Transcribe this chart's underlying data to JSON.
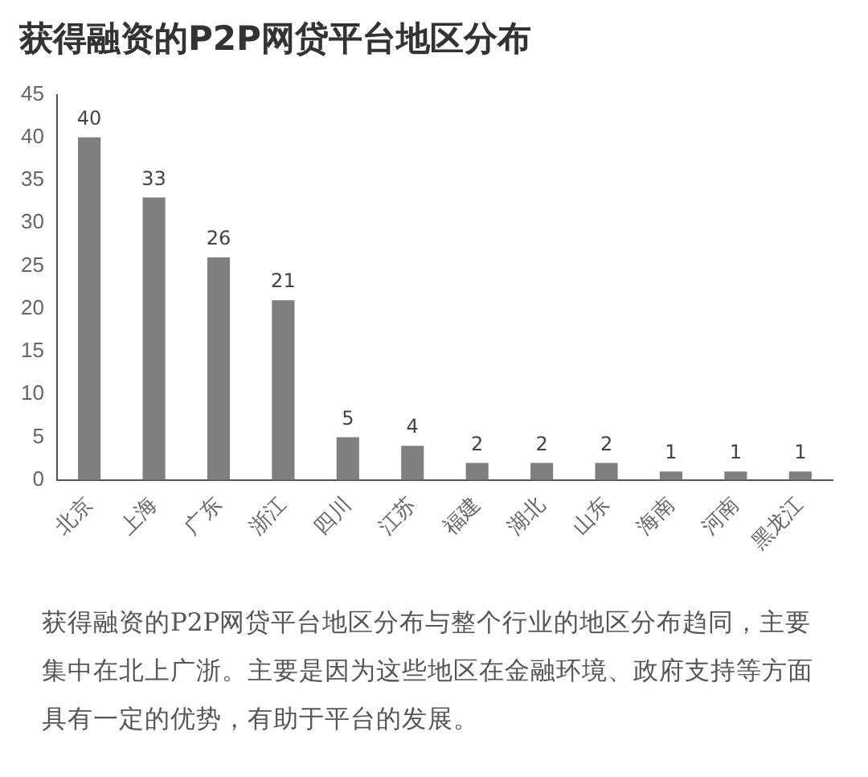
{
  "chart_data": {
    "type": "bar",
    "title": "获得融资的P2P网贷平台地区分布",
    "categories": [
      "北京",
      "上海",
      "广东",
      "浙江",
      "四川",
      "江苏",
      "福建",
      "湖北",
      "山东",
      "海南",
      "河南",
      "黑龙江"
    ],
    "values": [
      40,
      33,
      26,
      21,
      5,
      4,
      2,
      2,
      2,
      1,
      1,
      1
    ],
    "color": "#7f7f7f",
    "ylim": [
      0,
      45
    ],
    "yticks": [
      0,
      5,
      10,
      15,
      20,
      25,
      30,
      35,
      40,
      45
    ],
    "grid": false,
    "legend": false,
    "data_labels": true,
    "annotations": [
      "获得融资的P2P网贷平台地区分布与整个行业的地区分布趋同，主要集中在北上广浙。主要是因为这些地区在金融环境、政府支持等方面具有一定的优势，有助于平台的发展。"
    ]
  }
}
